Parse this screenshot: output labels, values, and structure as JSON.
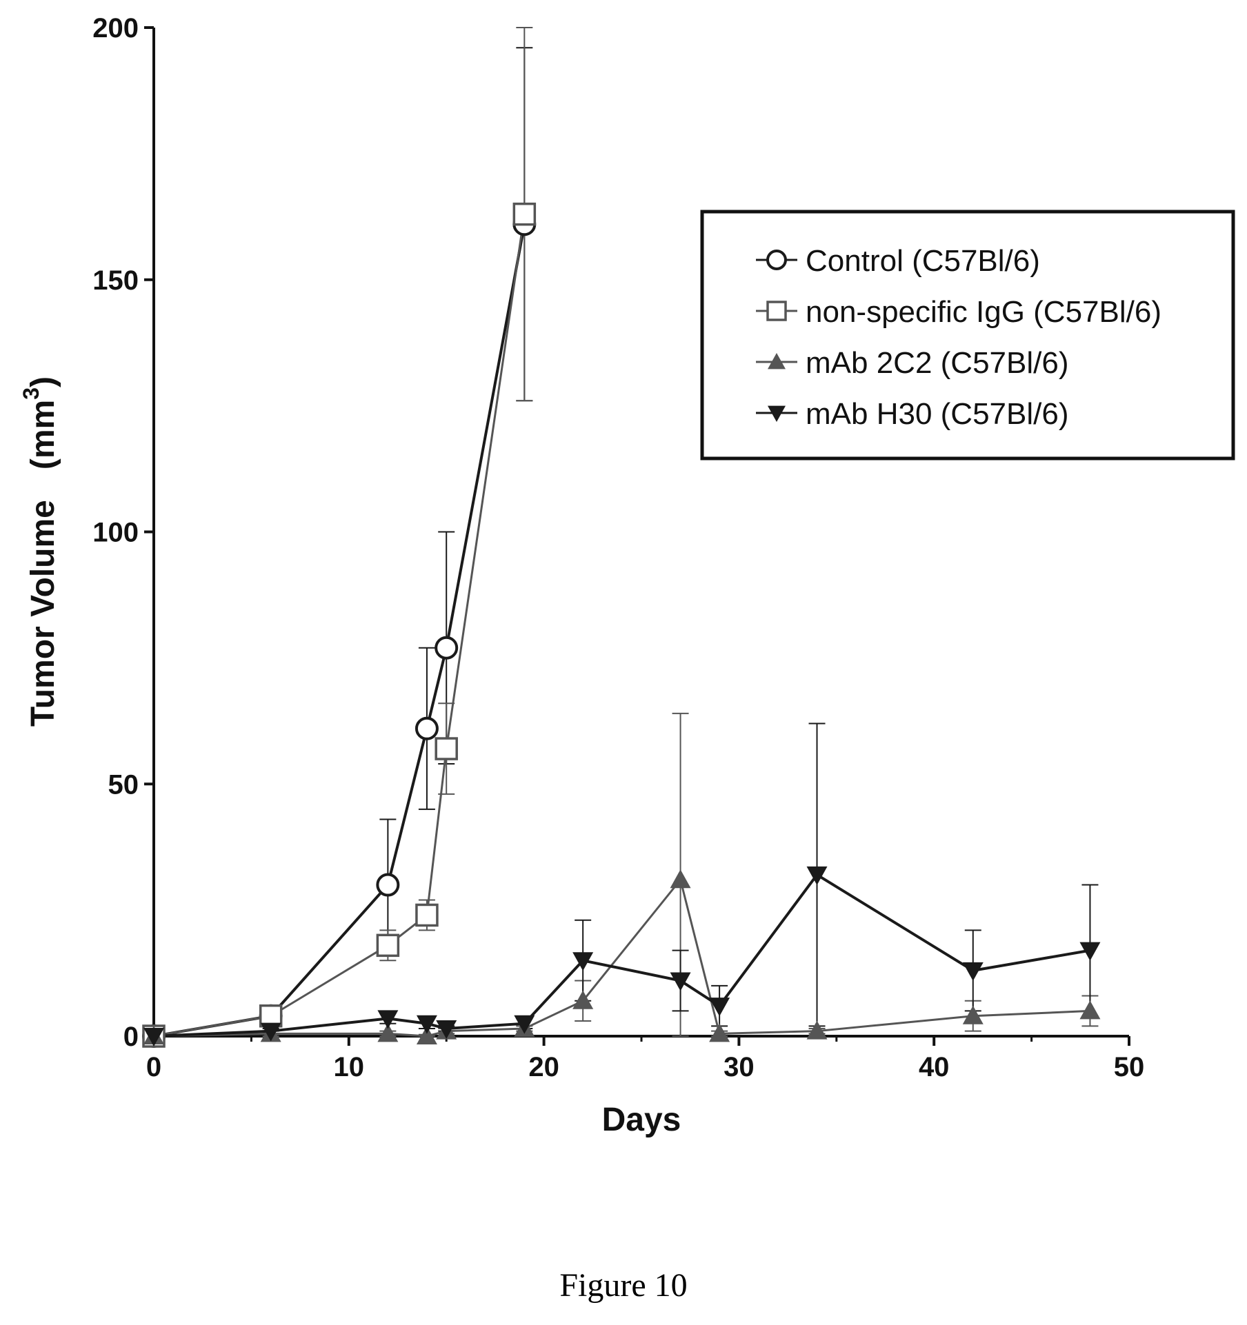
{
  "chart_data": {
    "type": "line",
    "title": "",
    "xlabel": "Days",
    "ylabel": "Tumor Volume",
    "ylabel_unit": "(mm",
    "ylabel_unit_sup": "3",
    "ylabel_unit_close": ")",
    "xlim": [
      0,
      50
    ],
    "ylim": [
      0,
      200
    ],
    "xticks": [
      0,
      10,
      20,
      30,
      40,
      50
    ],
    "yticks": [
      0,
      50,
      100,
      150,
      200
    ],
    "grid": false,
    "legend_position": "top-right",
    "series": [
      {
        "name": "Control (C57Bl/6)",
        "marker": "open-circle",
        "color": "#1a1a1a",
        "x": [
          0,
          6,
          12,
          14,
          15,
          19
        ],
        "y": [
          0,
          4,
          30,
          61,
          77,
          161
        ],
        "err": [
          0,
          1,
          13,
          16,
          23,
          35
        ]
      },
      {
        "name": "non-specific IgG (C57Bl/6)",
        "marker": "open-square",
        "color": "#555555",
        "x": [
          0,
          6,
          12,
          14,
          15,
          19
        ],
        "y": [
          0,
          4,
          18,
          24,
          57,
          163
        ],
        "err": [
          0,
          1,
          3,
          3,
          9,
          37
        ]
      },
      {
        "name": "mAb 2C2 (C57Bl/6)",
        "marker": "filled-triangle-up",
        "color": "#555555",
        "x": [
          0,
          6,
          12,
          14,
          15,
          19,
          22,
          27,
          29,
          34,
          42,
          48
        ],
        "y": [
          0,
          0.5,
          0.5,
          0,
          1,
          1.5,
          7,
          31,
          0.5,
          1,
          4,
          5
        ],
        "err": [
          0,
          0.5,
          0.5,
          0.3,
          0.5,
          0.5,
          4,
          33,
          0.5,
          0.5,
          3,
          3
        ]
      },
      {
        "name": "mAb H30 (C57Bl/6)",
        "marker": "filled-triangle-down",
        "color": "#1a1a1a",
        "x": [
          0,
          6,
          12,
          14,
          15,
          19,
          22,
          27,
          29,
          34,
          42,
          48
        ],
        "y": [
          0,
          1,
          3.5,
          2.5,
          1.5,
          2.5,
          15,
          11,
          6,
          32,
          13,
          17
        ],
        "err": [
          0,
          0.5,
          1,
          1,
          0.5,
          1,
          8,
          6,
          4,
          30,
          8,
          13
        ]
      }
    ]
  },
  "caption": "Figure 10"
}
